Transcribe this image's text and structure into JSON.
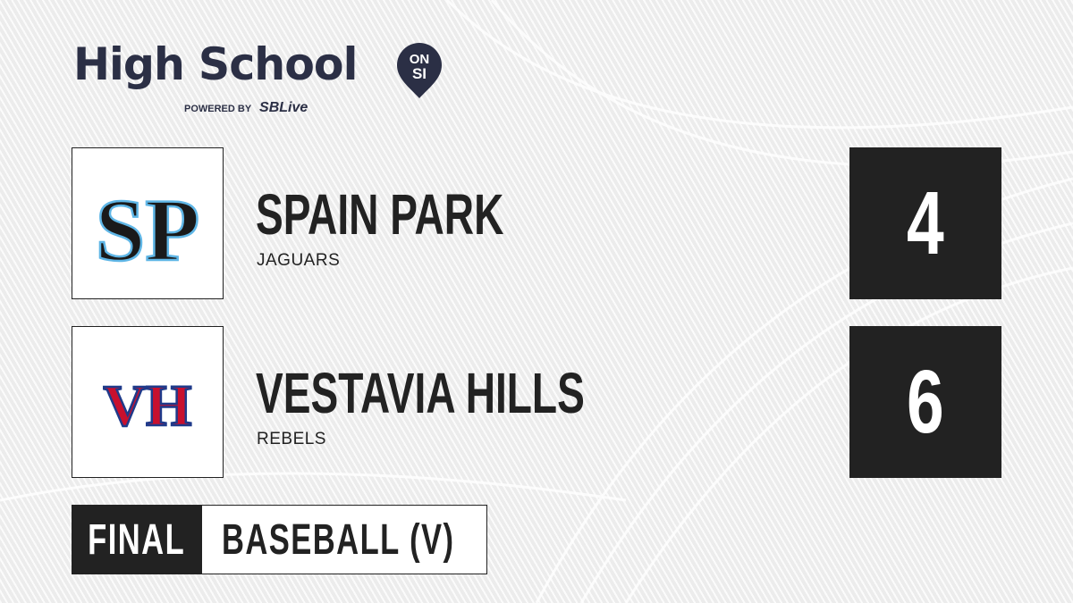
{
  "brand": {
    "title": "High School",
    "pin_text_top": "ON",
    "pin_text_bottom": "SI",
    "powered_by": "POWERED BY",
    "partner_s": "S",
    "partner_rest": "SBLive",
    "color": "#2b2f45",
    "partner_accent": "#3bb4e8"
  },
  "teams": [
    {
      "name": "SPAIN PARK",
      "mascot": "JAGUARS",
      "score": "4",
      "logo_text": "SP",
      "logo_color": "#1a1a1a",
      "logo_outline": "#5fb6e6"
    },
    {
      "name": "VESTAVIA HILLS",
      "mascot": "REBELS",
      "score": "6",
      "logo_text": "VH",
      "logo_color": "#c8102e",
      "logo_outline": "#1f3a8a"
    }
  ],
  "game": {
    "status": "FINAL",
    "sport": "BASEBALL (V)"
  }
}
